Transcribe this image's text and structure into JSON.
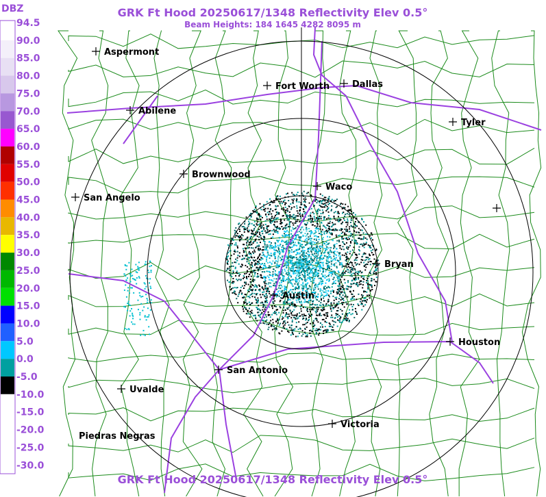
{
  "header": {
    "title": "GRK Ft Hood 20250617/1348 Reflectivity Elev 0.5°",
    "subtitle": "Beam Heights: 184 1645 4282 8095 m"
  },
  "colorbar": {
    "unit": "DBZ",
    "labels": [
      "94.5",
      "90.0",
      "85.0",
      "80.0",
      "75.0",
      "70.0",
      "65.0",
      "60.0",
      "55.0",
      "50.0",
      "45.0",
      "40.0",
      "35.0",
      "30.0",
      "25.0",
      "20.0",
      "15.0",
      "10.0",
      "5.0",
      "0.0",
      "-5.0",
      "-10.0",
      "-15.0",
      "-20.0",
      "-25.0",
      "-30.0"
    ],
    "colors": [
      "#ffffff",
      "#f4f0fa",
      "#e8e0f4",
      "#d8c8ec",
      "#b898e0",
      "#9858d0",
      "#ff00ff",
      "#b00000",
      "#e00000",
      "#ff3000",
      "#ff8c00",
      "#e8b800",
      "#ffff00",
      "#008800",
      "#00b800",
      "#00e000",
      "#0000ff",
      "#2060ff",
      "#00c8ff",
      "#00a0a0",
      "#000000",
      "#ffffff",
      "#ffffff",
      "#ffffff",
      "#ffffff"
    ]
  },
  "cities": [
    "Aspermont",
    "Abilene",
    "Fort Worth",
    "Dallas",
    "Tyler",
    "Brownwood",
    "Waco",
    "San Angelo",
    "Bryan",
    "Austin",
    "Houston",
    "San Antonio",
    "Uvalde",
    "Victoria",
    "Piedras Negras"
  ],
  "footer": {
    "title": "GRK Ft Hood 20250617/1348 Reflectivity Elev 0.5°"
  }
}
